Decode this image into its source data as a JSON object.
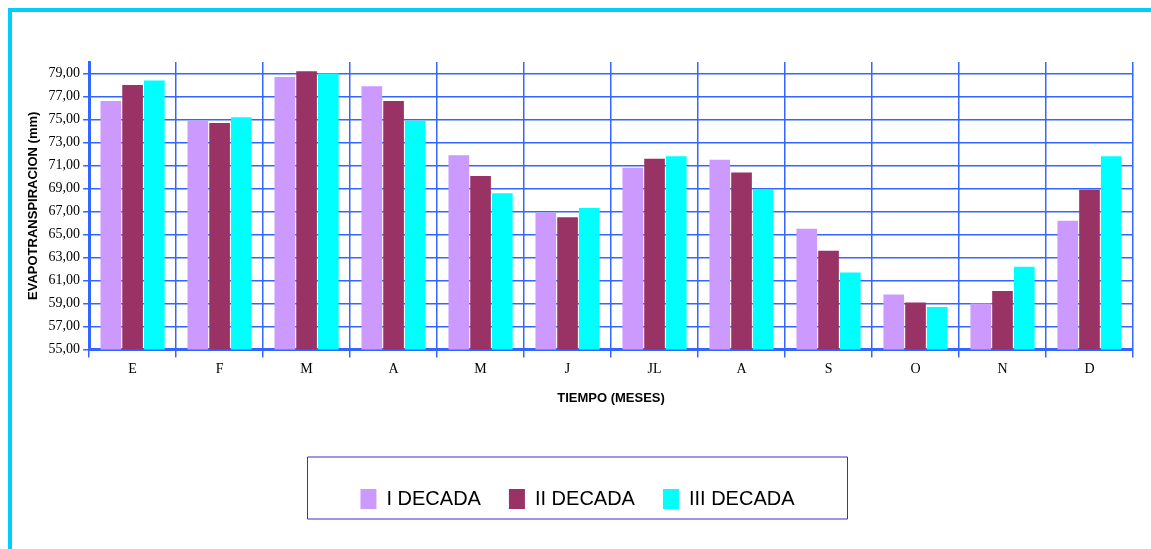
{
  "chart_data": {
    "type": "bar",
    "xlabel": "TIEMPO (MESES)",
    "ylabel": "EVAPOTRANSPIRACION (mm)",
    "categories": [
      "E",
      "F",
      "M",
      "A",
      "M",
      "J",
      "JL",
      "A",
      "S",
      "O",
      "N",
      "D"
    ],
    "series": [
      {
        "name": "I DECADA",
        "color": "#cc99ff",
        "values": [
          76.6,
          74.9,
          78.7,
          77.9,
          71.9,
          66.9,
          70.8,
          71.5,
          65.5,
          59.8,
          59.0,
          66.2
        ]
      },
      {
        "name": "II DECADA",
        "color": "#993366",
        "values": [
          78.0,
          74.7,
          79.2,
          76.6,
          70.1,
          66.5,
          71.6,
          70.4,
          63.6,
          59.1,
          60.1,
          68.9
        ]
      },
      {
        "name": "III DECADA",
        "color": "#00ffff",
        "values": [
          78.4,
          75.2,
          79.0,
          74.9,
          68.6,
          67.3,
          71.8,
          68.9,
          61.7,
          58.7,
          62.2,
          71.8
        ]
      }
    ],
    "ylim": [
      55,
      80
    ],
    "yticks": [
      {
        "value": 55,
        "label": "55,00"
      },
      {
        "value": 57,
        "label": "57,00"
      },
      {
        "value": 59,
        "label": "59,00"
      },
      {
        "value": 61,
        "label": "61,00"
      },
      {
        "value": 63,
        "label": "63,00"
      },
      {
        "value": 65,
        "label": "65,00"
      },
      {
        "value": 67,
        "label": "67,00"
      },
      {
        "value": 69,
        "label": "69,00"
      },
      {
        "value": 71,
        "label": "71,00"
      },
      {
        "value": 73,
        "label": "73,00"
      },
      {
        "value": 75,
        "label": "75,00"
      },
      {
        "value": 77,
        "label": "77,00"
      },
      {
        "value": 79,
        "label": "79,00"
      }
    ],
    "grid": true,
    "legend": "bottom"
  }
}
